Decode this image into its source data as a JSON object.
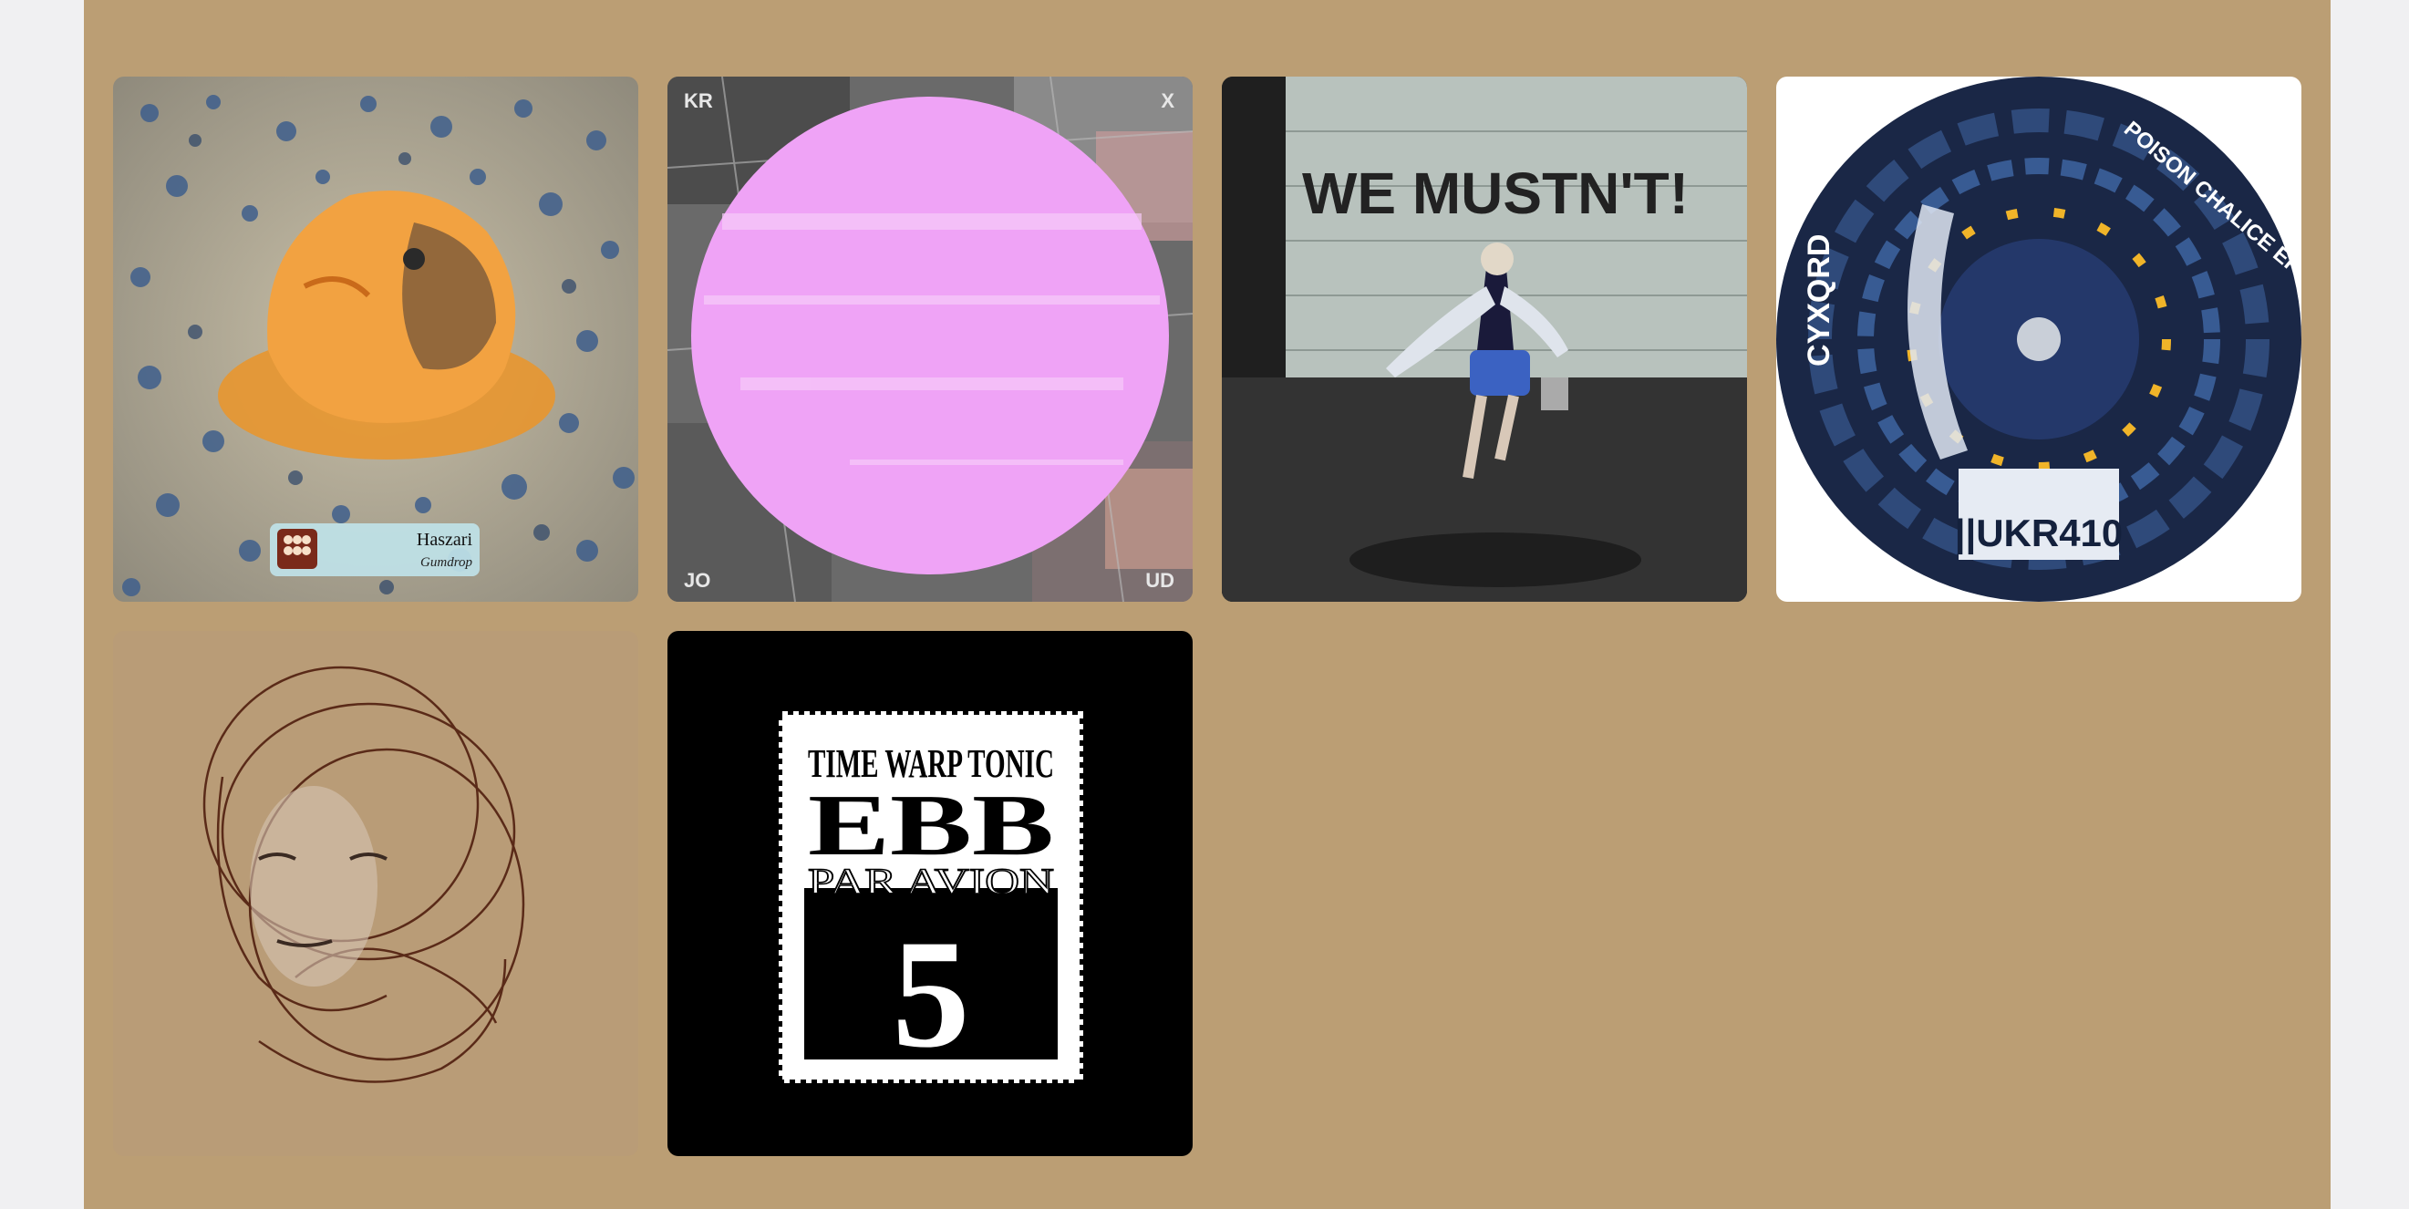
{
  "grid": {
    "albums": [
      {
        "badge_title": "Haszari",
        "badge_subtitle": "Gumdrop"
      },
      {
        "corner_tl": "KR",
        "corner_tr": "X",
        "corner_bl": "JO",
        "corner_br": "UD"
      },
      {
        "wall_text": "WE MUSTN'T!"
      },
      {
        "label_artist": "CYXQRD",
        "label_title": "POISON CHALICE EP",
        "label_code": "||UKR410"
      },
      {},
      {
        "stamp_line1": "TIME WARP TONIC",
        "stamp_line2": "EBB",
        "stamp_line3": "PAR AVION",
        "stamp_number": "5"
      }
    ]
  },
  "colors": {
    "panel_background": "#bb9e74",
    "page_background": "#f0f0f2",
    "pink_circle": "#efa3f6",
    "orange_figure": "#f2a241",
    "disc_navy": "#1a2746",
    "disc_accent": "#f0b429"
  }
}
